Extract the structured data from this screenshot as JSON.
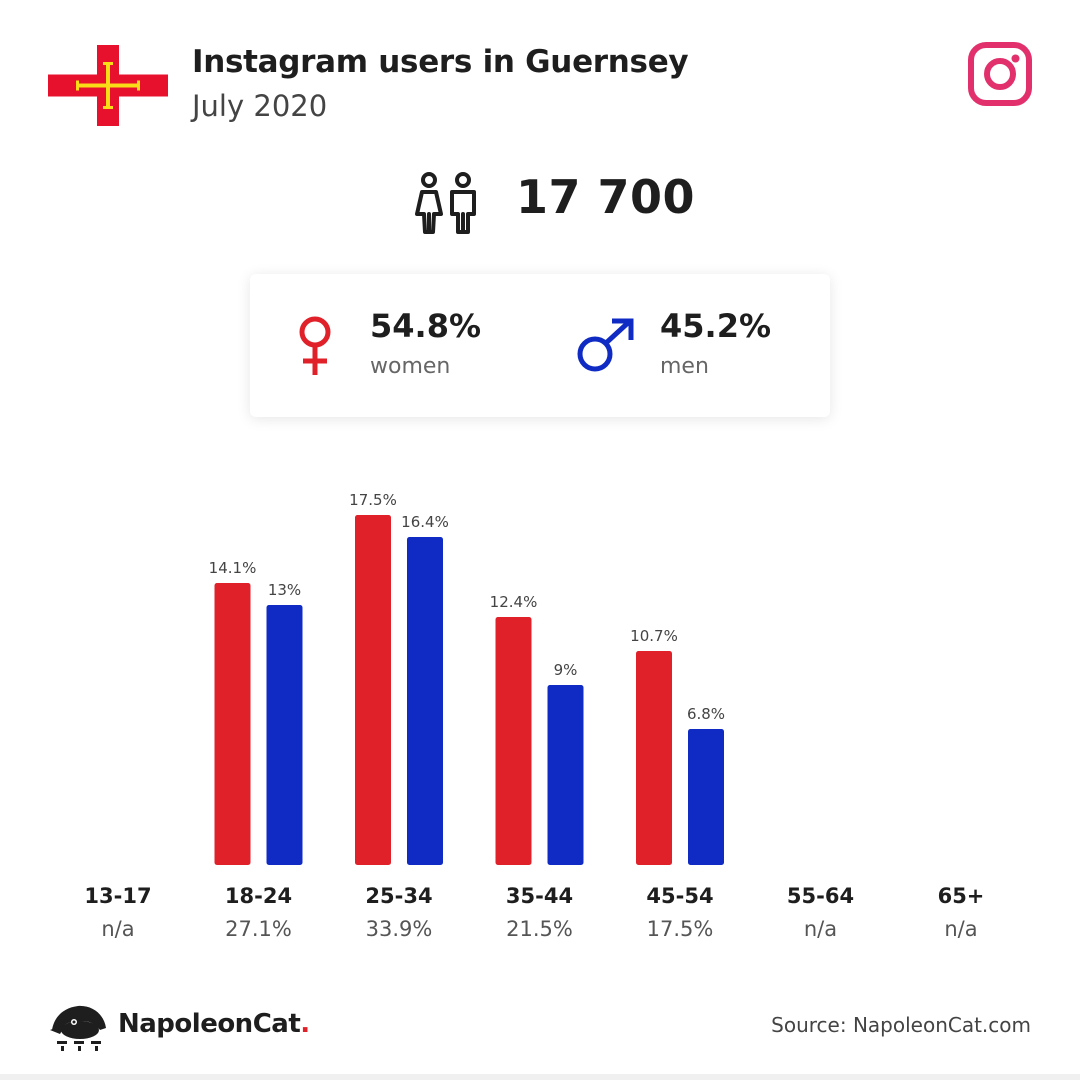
{
  "header": {
    "title": "Instagram users in Guernsey",
    "subtitle": "July 2020"
  },
  "total_users": "17 700",
  "gender": {
    "women_pct": "54.8%",
    "women_label": "women",
    "men_pct": "45.2%",
    "men_label": "men"
  },
  "colors": {
    "women": "#e0212a",
    "men": "#0f2bc4",
    "instagram": "#e1306c",
    "flag_red": "#e8112d",
    "flag_yellow": "#f9dd16",
    "text": "#1e1e1e"
  },
  "icons": {
    "flag": "guernsey-flag-icon",
    "instagram": "instagram-icon",
    "people": "people-icon",
    "female": "female-symbol-icon",
    "male": "male-symbol-icon",
    "logo": "napoleoncat-logo-icon"
  },
  "chart_data": {
    "type": "bar",
    "categories": [
      "13-17",
      "18-24",
      "25-34",
      "35-44",
      "45-54",
      "55-64",
      "65+"
    ],
    "category_totals": [
      "n/a",
      "27.1%",
      "33.9%",
      "21.5%",
      "17.5%",
      "n/a",
      "n/a"
    ],
    "series": [
      {
        "values": [
          null,
          14.1,
          17.5,
          12.4,
          10.7,
          null,
          null
        ],
        "labels": [
          "",
          "14.1%",
          "17.5%",
          "12.4%",
          "10.7%",
          "",
          ""
        ],
        "color": "#e0212a"
      },
      {
        "values": [
          null,
          13,
          16.4,
          9,
          6.8,
          null,
          null
        ],
        "labels": [
          "",
          "13%",
          "16.4%",
          "9%",
          "6.8%",
          "",
          ""
        ],
        "color": "#0f2bc4"
      }
    ],
    "grid": false,
    "legend": "none"
  },
  "footer": {
    "brand": "NapoleonCat",
    "brand_dot": ".",
    "source": "Source: NapoleonCat.com"
  }
}
